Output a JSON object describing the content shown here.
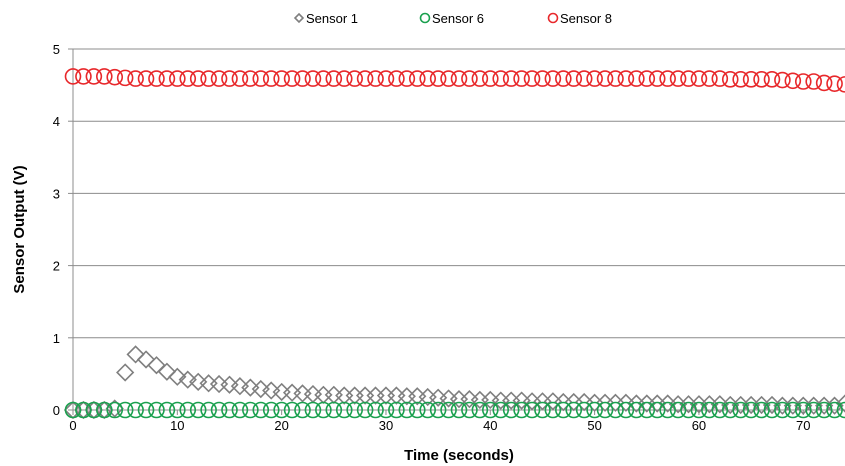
{
  "chart_data": {
    "type": "scatter",
    "title": "",
    "xlabel": "Time (seconds)",
    "ylabel": "Sensor Output (V)",
    "xlim": [
      0,
      74
    ],
    "ylim": [
      0,
      5
    ],
    "x_ticks": [
      0,
      10,
      20,
      30,
      40,
      50,
      60,
      70
    ],
    "y_ticks": [
      0,
      1,
      2,
      3,
      4,
      5
    ],
    "grid": "horizontal",
    "legend_position": "top",
    "series": [
      {
        "name": "Sensor 1",
        "marker": "diamond",
        "color": "#7f7f7f",
        "x": [
          0,
          1,
          2,
          3,
          4,
          5,
          6,
          7,
          8,
          9,
          10,
          11,
          12,
          13,
          14,
          15,
          16,
          17,
          18,
          19,
          20,
          21,
          22,
          23,
          24,
          25,
          26,
          27,
          28,
          29,
          30,
          31,
          32,
          33,
          34,
          35,
          36,
          37,
          38,
          39,
          40,
          41,
          42,
          43,
          44,
          45,
          46,
          47,
          48,
          49,
          50,
          51,
          52,
          53,
          54,
          55,
          56,
          57,
          58,
          59,
          60,
          61,
          62,
          63,
          64,
          65,
          66,
          67,
          68,
          69,
          70,
          71,
          72,
          73,
          74
        ],
        "y": [
          0.0,
          0.0,
          0.0,
          0.0,
          0.02,
          0.52,
          0.77,
          0.7,
          0.62,
          0.53,
          0.46,
          0.42,
          0.39,
          0.37,
          0.36,
          0.35,
          0.33,
          0.31,
          0.29,
          0.27,
          0.25,
          0.24,
          0.23,
          0.22,
          0.21,
          0.21,
          0.2,
          0.2,
          0.2,
          0.2,
          0.2,
          0.2,
          0.19,
          0.19,
          0.18,
          0.17,
          0.16,
          0.15,
          0.15,
          0.14,
          0.14,
          0.13,
          0.13,
          0.13,
          0.12,
          0.12,
          0.12,
          0.11,
          0.11,
          0.11,
          0.1,
          0.1,
          0.1,
          0.1,
          0.09,
          0.09,
          0.09,
          0.09,
          0.08,
          0.08,
          0.08,
          0.08,
          0.08,
          0.07,
          0.07,
          0.07,
          0.07,
          0.07,
          0.06,
          0.06,
          0.06,
          0.06,
          0.06,
          0.06,
          0.09
        ]
      },
      {
        "name": "Sensor 6",
        "marker": "circle",
        "color": "#1aa04e",
        "x": [
          0,
          1,
          2,
          3,
          4,
          5,
          6,
          7,
          8,
          9,
          10,
          11,
          12,
          13,
          14,
          15,
          16,
          17,
          18,
          19,
          20,
          21,
          22,
          23,
          24,
          25,
          26,
          27,
          28,
          29,
          30,
          31,
          32,
          33,
          34,
          35,
          36,
          37,
          38,
          39,
          40,
          41,
          42,
          43,
          44,
          45,
          46,
          47,
          48,
          49,
          50,
          51,
          52,
          53,
          54,
          55,
          56,
          57,
          58,
          59,
          60,
          61,
          62,
          63,
          64,
          65,
          66,
          67,
          68,
          69,
          70,
          71,
          72,
          73,
          74
        ],
        "y": [
          0,
          0,
          0,
          0,
          0,
          0,
          0,
          0,
          0,
          0,
          0,
          0,
          0,
          0,
          0,
          0,
          0,
          0,
          0,
          0,
          0,
          0,
          0,
          0,
          0,
          0,
          0,
          0,
          0,
          0,
          0,
          0,
          0,
          0,
          0,
          0,
          0,
          0,
          0,
          0,
          0,
          0,
          0,
          0,
          0,
          0,
          0,
          0,
          0,
          0,
          0,
          0,
          0,
          0,
          0,
          0,
          0,
          0,
          0,
          0,
          0,
          0,
          0,
          0,
          0,
          0,
          0,
          0,
          0,
          0,
          0,
          0,
          0,
          0,
          0
        ]
      },
      {
        "name": "Sensor 8",
        "marker": "circle",
        "color": "#e8282b",
        "x": [
          0,
          1,
          2,
          3,
          4,
          5,
          6,
          7,
          8,
          9,
          10,
          11,
          12,
          13,
          14,
          15,
          16,
          17,
          18,
          19,
          20,
          21,
          22,
          23,
          24,
          25,
          26,
          27,
          28,
          29,
          30,
          31,
          32,
          33,
          34,
          35,
          36,
          37,
          38,
          39,
          40,
          41,
          42,
          43,
          44,
          45,
          46,
          47,
          48,
          49,
          50,
          51,
          52,
          53,
          54,
          55,
          56,
          57,
          58,
          59,
          60,
          61,
          62,
          63,
          64,
          65,
          66,
          67,
          68,
          69,
          70,
          71,
          72,
          73,
          74
        ],
        "y": [
          4.62,
          4.62,
          4.62,
          4.62,
          4.61,
          4.6,
          4.59,
          4.59,
          4.59,
          4.59,
          4.59,
          4.59,
          4.59,
          4.59,
          4.59,
          4.59,
          4.59,
          4.59,
          4.59,
          4.59,
          4.59,
          4.59,
          4.59,
          4.59,
          4.59,
          4.59,
          4.59,
          4.59,
          4.59,
          4.59,
          4.59,
          4.59,
          4.59,
          4.59,
          4.59,
          4.59,
          4.59,
          4.59,
          4.59,
          4.59,
          4.59,
          4.59,
          4.59,
          4.59,
          4.59,
          4.59,
          4.59,
          4.59,
          4.59,
          4.59,
          4.59,
          4.59,
          4.59,
          4.59,
          4.59,
          4.59,
          4.59,
          4.59,
          4.59,
          4.59,
          4.59,
          4.59,
          4.59,
          4.58,
          4.58,
          4.58,
          4.58,
          4.58,
          4.57,
          4.56,
          4.55,
          4.55,
          4.53,
          4.52,
          4.51
        ]
      }
    ]
  }
}
